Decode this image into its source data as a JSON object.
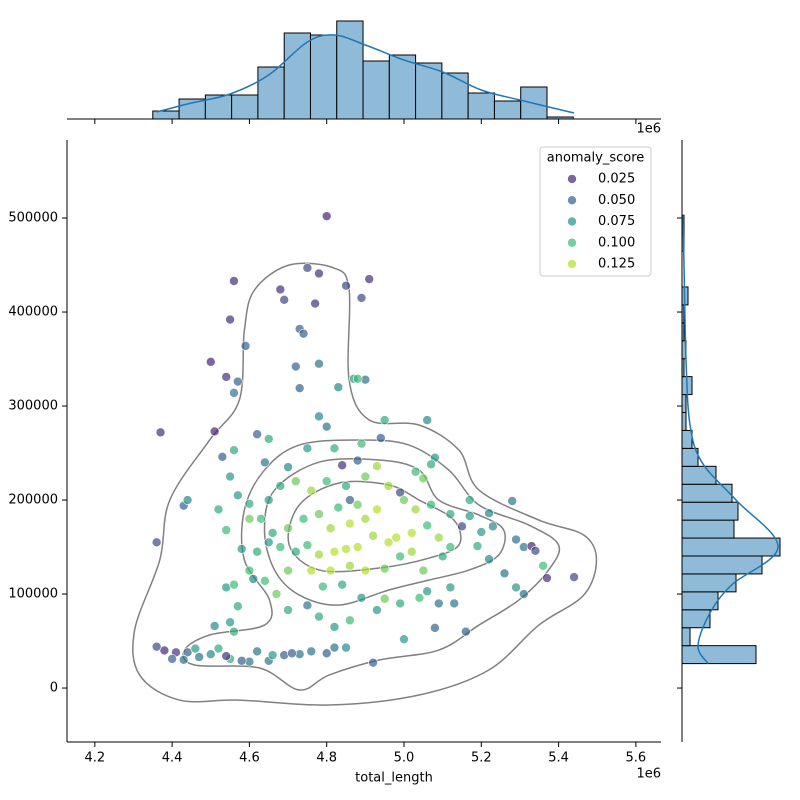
{
  "chart_data": [
    {
      "type": "scatter",
      "x_label": "total_length",
      "x_offset_label": "1e6",
      "xlim": [
        4128000,
        5665000
      ],
      "xticks": [
        {
          "value": 4200000,
          "label": "4.2"
        },
        {
          "value": 4400000,
          "label": "4.4"
        },
        {
          "value": 4600000,
          "label": "4.6"
        },
        {
          "value": 4800000,
          "label": "4.8"
        },
        {
          "value": 5000000,
          "label": "5.0"
        },
        {
          "value": 5200000,
          "label": "5.2"
        },
        {
          "value": 5400000,
          "label": "5.4"
        },
        {
          "value": 5600000,
          "label": "5.6"
        }
      ],
      "ylim": [
        -57400,
        583000
      ],
      "yticks": [
        0,
        100000,
        200000,
        300000,
        400000,
        500000
      ],
      "x": [
        4800000,
        4560000,
        4780000,
        4910000,
        4750000,
        4680000,
        4850000,
        4890000,
        4770000,
        4690000,
        4550000,
        4730000,
        4740000,
        4500000,
        4590000,
        4540000,
        4720000,
        4780000,
        4570000,
        4560000,
        4730000,
        4830000,
        4870000,
        4900000,
        4880000,
        4370000,
        4510000,
        4360000,
        4430000,
        4440000,
        4530000,
        4550000,
        4560000,
        4620000,
        4650000,
        4780000,
        4950000,
        5060000,
        4940000,
        4800000,
        4840000,
        4880000,
        4930000,
        5030000,
        5080000,
        5070000,
        5050000,
        4990000,
        4860000,
        5170000,
        5220000,
        5280000,
        5230000,
        5170000,
        5150000,
        5200000,
        5290000,
        5310000,
        5330000,
        5340000,
        5360000,
        5370000,
        5440000,
        5310000,
        5290000,
        5260000,
        5220000,
        5190000,
        5120000,
        5090000,
        5130000,
        5160000,
        5080000,
        5000000,
        4920000,
        4820000,
        4850000,
        4800000,
        4730000,
        4690000,
        4650000,
        4600000,
        4550000,
        4500000,
        4470000,
        4440000,
        4410000,
        4380000,
        4360000,
        4400000,
        4430000,
        4460000,
        4520000,
        4540000,
        4580000,
        4620000,
        4660000,
        4710000,
        4760000,
        4510000,
        4550000,
        4560000,
        4570000,
        4540000,
        4560000,
        4610000,
        4640000,
        4670000,
        4700000,
        4750000,
        4780000,
        4820000,
        4860000,
        4890000,
        4930000,
        4950000,
        4990000,
        5040000,
        5060000,
        4790000,
        4840000,
        4810000,
        4860000,
        4900000,
        4950000,
        4990000,
        5020000,
        5050000,
        5100000,
        5120000,
        5090000,
        5060000,
        5020000,
        4980000,
        4960000,
        4920000,
        4880000,
        4850000,
        4820000,
        4780000,
        4750000,
        4720000,
        4680000,
        4650000,
        4620000,
        4580000,
        4600000,
        4700000,
        4760000,
        4810000,
        4860000,
        4900000,
        4930000,
        4880000,
        4830000,
        4780000,
        4740000,
        4700000,
        4660000,
        4630000,
        4600000,
        4650000,
        4680000,
        4720000,
        4760000,
        4800000,
        4850000,
        4900000,
        4960000,
        5000000,
        5030000,
        5070000,
        5120000,
        4700000,
        4750000,
        4820000,
        4890000,
        4640000,
        4600000,
        4570000,
        4520000,
        4540000
      ],
      "y": [
        502000,
        433000,
        441000,
        435000,
        447000,
        424000,
        428000,
        415000,
        409000,
        413000,
        392000,
        382000,
        377000,
        347000,
        364000,
        331000,
        342000,
        345000,
        326000,
        314000,
        319000,
        320000,
        329000,
        328000,
        329000,
        272000,
        273000,
        155000,
        194000,
        200000,
        246000,
        225000,
        253000,
        270000,
        265000,
        289000,
        285000,
        285000,
        266000,
        278000,
        237000,
        242000,
        236000,
        230000,
        245000,
        238000,
        223000,
        208000,
        200000,
        200000,
        186000,
        199000,
        172000,
        183000,
        172000,
        166000,
        158000,
        150000,
        151000,
        146000,
        130000,
        117000,
        118000,
        100000,
        107000,
        122000,
        137000,
        151000,
        107000,
        90000,
        90000,
        60000,
        64000,
        52000,
        27000,
        43000,
        43000,
        37000,
        36000,
        35000,
        29000,
        28000,
        31000,
        36000,
        33000,
        38000,
        38000,
        40000,
        44000,
        31000,
        30000,
        42000,
        42000,
        34000,
        29000,
        39000,
        35000,
        37000,
        39000,
        66000,
        70000,
        60000,
        87000,
        107000,
        110000,
        116000,
        114000,
        100000,
        83000,
        88000,
        76000,
        65000,
        72000,
        96000,
        83000,
        95000,
        90000,
        96000,
        103000,
        108000,
        110000,
        125000,
        130000,
        125000,
        127000,
        140000,
        145000,
        125000,
        140000,
        150000,
        160000,
        173000,
        165000,
        160000,
        155000,
        162000,
        150000,
        148000,
        145000,
        142000,
        152000,
        145000,
        150000,
        155000,
        145000,
        148000,
        125000,
        125000,
        125000,
        170000,
        175000,
        180000,
        190000,
        195000,
        192000,
        185000,
        180000,
        170000,
        165000,
        180000,
        196000,
        200000,
        215000,
        220000,
        210000,
        220000,
        215000,
        225000,
        215000,
        200000,
        190000,
        195000,
        185000,
        235000,
        255000,
        255000,
        260000,
        240000,
        180000,
        205000,
        190000,
        168000
      ],
      "hue": [
        0.02,
        0.03,
        0.03,
        0.03,
        0.04,
        0.03,
        0.04,
        0.04,
        0.03,
        0.04,
        0.03,
        0.05,
        0.05,
        0.02,
        0.05,
        0.03,
        0.05,
        0.06,
        0.05,
        0.06,
        0.05,
        0.07,
        0.08,
        0.06,
        0.1,
        0.03,
        0.02,
        0.04,
        0.05,
        0.07,
        0.05,
        0.08,
        0.09,
        0.05,
        0.09,
        0.07,
        0.09,
        0.07,
        0.05,
        0.06,
        0.03,
        0.05,
        0.12,
        0.1,
        0.08,
        0.09,
        0.11,
        0.04,
        0.05,
        0.09,
        0.07,
        0.06,
        0.07,
        0.08,
        0.04,
        0.08,
        0.06,
        0.06,
        0.02,
        0.04,
        0.1,
        0.03,
        0.04,
        0.06,
        0.08,
        0.06,
        0.07,
        0.09,
        0.08,
        0.06,
        0.06,
        0.05,
        0.05,
        0.08,
        0.05,
        0.06,
        0.07,
        0.05,
        0.06,
        0.05,
        0.06,
        0.06,
        0.09,
        0.07,
        0.06,
        0.05,
        0.03,
        0.02,
        0.04,
        0.05,
        0.06,
        0.08,
        0.09,
        0.03,
        0.05,
        0.06,
        0.08,
        0.05,
        0.06,
        0.07,
        0.08,
        0.09,
        0.09,
        0.08,
        0.1,
        0.07,
        0.1,
        0.11,
        0.09,
        0.06,
        0.09,
        0.08,
        0.1,
        0.08,
        0.08,
        0.11,
        0.09,
        0.1,
        0.08,
        0.1,
        0.09,
        0.13,
        0.12,
        0.13,
        0.11,
        0.1,
        0.12,
        0.11,
        0.09,
        0.1,
        0.12,
        0.1,
        0.13,
        0.14,
        0.13,
        0.12,
        0.13,
        0.14,
        0.13,
        0.12,
        0.1,
        0.09,
        0.1,
        0.08,
        0.09,
        0.08,
        0.1,
        0.11,
        0.13,
        0.12,
        0.14,
        0.12,
        0.13,
        0.11,
        0.1,
        0.11,
        0.1,
        0.11,
        0.09,
        0.1,
        0.09,
        0.08,
        0.09,
        0.11,
        0.12,
        0.1,
        0.09,
        0.11,
        0.12,
        0.11,
        0.12,
        0.1,
        0.09,
        0.07,
        0.08,
        0.09,
        0.1,
        0.06,
        0.11,
        0.08,
        0.09,
        0.1
      ],
      "hue_title": "anomaly_score",
      "hue_levels": [
        0.025,
        {
          "value": 0.05,
          "label": "0.050"
        },
        0.075,
        {
          "value": 0.1,
          "label": "0.100"
        },
        0.125
      ],
      "hue_colors": [
        "#482475",
        "#355f8d",
        "#21918c",
        "#3aba76",
        "#b5de2b"
      ],
      "alpha": 0.7,
      "legend": "upper right",
      "contour_color": "#808080",
      "contours": [
        {
          "x": [
            4574000,
            4806000,
            5039000,
            5219000,
            5349000,
            5465000,
            5498000,
            5465000,
            5349000,
            5194000,
            5142000,
            5039000,
            4910000,
            4858000,
            4858000,
            4819000,
            4703000,
            4613000,
            4587000,
            4574000,
            4497000,
            4394000,
            4368000,
            4303000,
            4316000,
            4419000
          ],
          "y": [
            -12800,
            -18100,
            -7400,
            19100,
            67000,
            98900,
            136200,
            162800,
            178700,
            210600,
            253200,
            279800,
            285100,
            327700,
            423400,
            446800,
            450000,
            423400,
            380800,
            306400,
            263800,
            200000,
            136200,
            61700,
            13800,
            -12800
          ]
        },
        {
          "x": [
            4432000,
            4458000,
            4626000,
            4729000,
            4806000,
            4936000,
            5090000,
            5194000,
            5297000,
            5374000,
            5400000,
            5323000,
            5194000,
            5116000,
            5013000,
            4884000,
            4729000,
            4639000,
            4587000,
            4587000,
            4652000,
            4639000,
            4497000
          ],
          "y": [
            40400,
            24500,
            21300,
            -2100,
            13800,
            29800,
            40400,
            67000,
            93600,
            125500,
            152100,
            173400,
            194700,
            231900,
            258500,
            263800,
            258500,
            231900,
            189400,
            136200,
            93600,
            67000,
            56400
          ]
        },
        {
          "x": [
            4665000,
            4729000,
            4832000,
            4961000,
            5065000,
            5168000,
            5245000,
            5258000,
            5194000,
            5090000,
            5039000,
            4936000,
            4781000,
            4665000,
            4639000
          ],
          "y": [
            125500,
            98900,
            88300,
            104300,
            114900,
            125500,
            141500,
            168100,
            184000,
            200000,
            231900,
            242600,
            240400,
            210600,
            168100
          ]
        },
        {
          "x": [
            4703000,
            4781000,
            4936000,
            5065000,
            5142000,
            5129000,
            5039000,
            4961000,
            4832000,
            4729000
          ],
          "y": [
            152100,
            125500,
            127700,
            138300,
            152100,
            178700,
            200000,
            216000,
            218100,
            194700
          ]
        }
      ]
    },
    {
      "type": "histogram",
      "orientation": "vertical",
      "color": "#8fbbd9",
      "edge_color": "#000000",
      "kde_color": "#1f77b4",
      "count_lim": [
        0,
        50
      ],
      "bins": [
        4350000,
        4418000,
        4486000,
        4554000,
        4622000,
        4690000,
        4758000,
        4826000,
        4894000,
        4962000,
        5030000,
        5098000,
        5166000,
        5234000,
        5302000,
        5370000,
        5438000
      ],
      "counts": [
        4,
        10,
        12,
        12,
        26,
        43,
        42,
        49,
        29,
        32,
        28,
        23,
        13,
        9,
        16,
        1
      ],
      "kde": {
        "x": [
          4360000,
          4450000,
          4550000,
          4650000,
          4750000,
          4820000,
          4900000,
          5000000,
          5100000,
          5200000,
          5300000,
          5440000
        ],
        "y": [
          3.5,
          8,
          12.5,
          22,
          38.5,
          42,
          37,
          29.5,
          23.5,
          14.5,
          9.5,
          3
        ]
      }
    },
    {
      "type": "histogram",
      "orientation": "horizontal",
      "color": "#8fbbd9",
      "edge_color": "#000000",
      "kde_color": "#1f77b4",
      "count_lim": [
        0,
        50
      ],
      "bins": [
        26000,
        45080,
        64160,
        83240,
        102320,
        121400,
        140480,
        159560,
        178640,
        197720,
        216800,
        235880,
        254960,
        274040,
        293120,
        312200,
        331280,
        350360,
        369440,
        388520,
        407600,
        426680,
        445760,
        464840,
        483920,
        503000
      ],
      "counts": [
        37,
        4,
        14,
        18,
        27,
        40,
        49,
        26,
        28,
        25,
        17,
        8,
        5,
        2,
        2,
        5,
        1,
        2,
        1,
        1,
        3,
        0,
        0,
        1,
        1
      ],
      "kde": {
        "x": [
          26000,
          45000,
          80000,
          110000,
          150000,
          200000,
          240000,
          280000,
          350000,
          450000,
          503000
        ],
        "y": [
          13,
          8,
          14,
          25,
          48,
          27,
          10,
          4,
          2,
          1,
          0.5
        ]
      }
    }
  ]
}
